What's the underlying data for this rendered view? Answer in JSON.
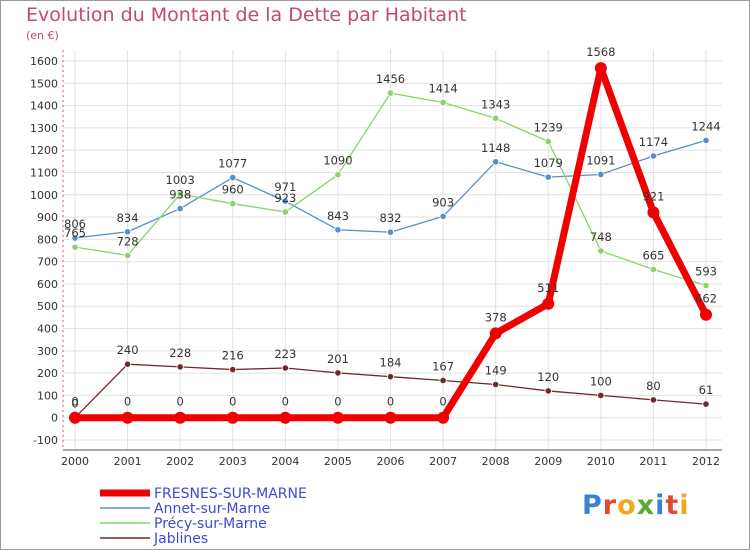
{
  "title": "Evolution du Montant de la Dette par Habitant",
  "unit": "(en €)",
  "logo": {
    "text": "Proxiti",
    "colors": [
      "#3b7fd6",
      "#e24b2f",
      "#f2a623",
      "#5aa83a",
      "#3b7fd6",
      "#e24b2f",
      "#f2a623"
    ]
  },
  "chart_data": {
    "type": "line",
    "x": [
      "2000",
      "2001",
      "2002",
      "2003",
      "2004",
      "2005",
      "2006",
      "2007",
      "2008",
      "2009",
      "2010",
      "2011",
      "2012"
    ],
    "ylim": [
      -100,
      1600
    ],
    "yticks": [
      "-100",
      "0",
      "100",
      "200",
      "300",
      "400",
      "500",
      "600",
      "700",
      "800",
      "900",
      "1000",
      "1100",
      "1200",
      "1300",
      "1400",
      "1500",
      "1600"
    ],
    "grid": true,
    "legend": "bottom-left",
    "series": [
      {
        "name": "FRESNES-SUR-MARNE",
        "color": "#f00000",
        "values": [
          0,
          0,
          0,
          0,
          0,
          0,
          0,
          0,
          378,
          511,
          1568,
          921,
          462
        ],
        "labels": [
          "0",
          "0",
          "0",
          "0",
          "0",
          "0",
          "0",
          "0",
          "378",
          "511",
          "1568",
          "921",
          "462"
        ]
      },
      {
        "name": "Annet-sur-Marne",
        "color": "#5590c8",
        "values": [
          806,
          834,
          938,
          1077,
          971,
          843,
          832,
          903,
          1148,
          1079,
          1091,
          1174,
          1244
        ],
        "labels": [
          "806",
          "834",
          "938",
          "1077",
          "971",
          "843",
          "832",
          "903",
          "1148",
          "1079",
          "1091",
          "1174",
          "1244"
        ]
      },
      {
        "name": "Précy-sur-Marne",
        "color": "#88d46a",
        "values": [
          765,
          728,
          1003,
          960,
          923,
          1090,
          1456,
          1414,
          1343,
          1239,
          748,
          665,
          593
        ],
        "labels": [
          "765",
          "728",
          "1003",
          "960",
          "923",
          "1090",
          "1456",
          "1414",
          "1343",
          "1239",
          "748",
          "665",
          "593"
        ]
      },
      {
        "name": "Jablines",
        "color": "#6e2a2a",
        "values": [
          0,
          240,
          228,
          216,
          223,
          201,
          184,
          167,
          149,
          120,
          100,
          80,
          61
        ],
        "labels": [
          "0",
          "240",
          "228",
          "216",
          "223",
          "201",
          "184",
          "167",
          "149",
          "120",
          "100",
          "80",
          "61"
        ]
      }
    ]
  }
}
